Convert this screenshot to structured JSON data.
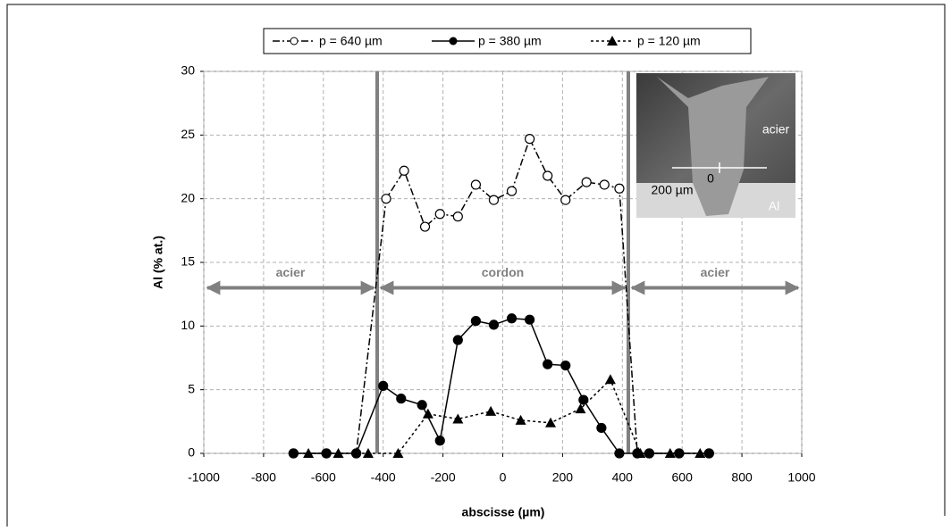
{
  "chart_data": {
    "type": "line",
    "x_label": "abscisse (µm)",
    "y_label": "Al (% at.)",
    "xlim": [
      -1000,
      1000
    ],
    "xticks": [
      -1000,
      -800,
      -600,
      -400,
      -200,
      0,
      200,
      400,
      600,
      800,
      1000
    ],
    "ylim": [
      0,
      30
    ],
    "yticks": [
      0,
      5,
      10,
      15,
      20,
      25,
      30
    ],
    "grid": true,
    "legend": "top",
    "series": [
      {
        "name": "p = 640 µm",
        "color": "#000000",
        "marker": "open-circle",
        "dash": "dash-dot",
        "x": [
          -700,
          -590,
          -490,
          -390,
          -330,
          -260,
          -210,
          -150,
          -90,
          -30,
          30,
          90,
          150,
          210,
          280,
          340,
          390,
          450,
          490,
          590,
          690
        ],
        "values": [
          0,
          0,
          0,
          20,
          22.2,
          17.8,
          18.8,
          18.6,
          21.1,
          19.9,
          20.6,
          24.7,
          21.8,
          19.9,
          21.3,
          21.1,
          20.8,
          0,
          0,
          0,
          0
        ]
      },
      {
        "name": "p = 380 µm",
        "color": "#000000",
        "marker": "filled-circle",
        "dash": "solid",
        "x": [
          -700,
          -590,
          -490,
          -400,
          -340,
          -270,
          -210,
          -150,
          -90,
          -30,
          30,
          90,
          150,
          210,
          270,
          330,
          390,
          450,
          490,
          590,
          690
        ],
        "values": [
          0,
          0,
          0,
          5.3,
          4.3,
          3.8,
          1,
          8.9,
          10.4,
          10.1,
          10.6,
          10.5,
          7,
          6.9,
          4.2,
          2,
          0,
          0,
          0,
          0,
          0
        ]
      },
      {
        "name": "p = 120 µm",
        "color": "#000000",
        "marker": "triangle",
        "dash": "dotted",
        "x": [
          -650,
          -550,
          -450,
          -350,
          -250,
          -150,
          -40,
          60,
          160,
          260,
          360,
          460,
          560,
          660
        ],
        "values": [
          0,
          0,
          0,
          0,
          3.1,
          2.7,
          3.3,
          2.6,
          2.4,
          3.5,
          5.8,
          0,
          0,
          0
        ]
      }
    ],
    "vertical_lines": [
      -420,
      420
    ],
    "region_y": 13,
    "regions": [
      {
        "label": "acier",
        "from": -1000,
        "to": -420
      },
      {
        "label": "cordon",
        "from": -420,
        "to": 420
      },
      {
        "label": "acier",
        "from": 420,
        "to": 1000
      }
    ],
    "inset": {
      "labels": [
        "acier",
        "200 µm",
        "0",
        "Al"
      ]
    }
  }
}
